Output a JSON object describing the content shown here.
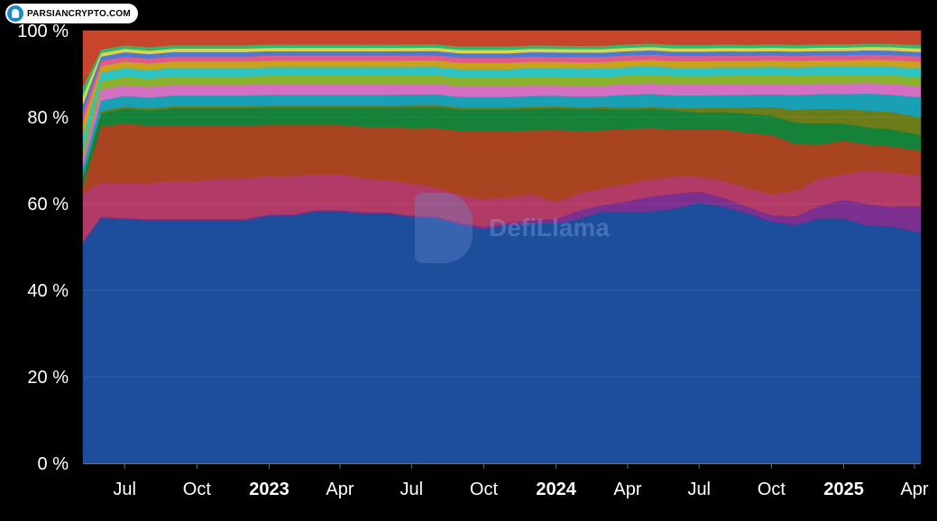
{
  "chart_data": {
    "type": "area",
    "stacked": true,
    "normalized": true,
    "y_tick_labels": [
      "0 %",
      "20 %",
      "40 %",
      "60 %",
      "80 %",
      "100 %"
    ],
    "y_ticks": [
      0,
      20,
      40,
      60,
      80,
      100
    ],
    "ylim": [
      0,
      100
    ],
    "x_tick_labels": [
      "Jul",
      "Oct",
      "2023",
      "Apr",
      "Jul",
      "Oct",
      "2024",
      "Apr",
      "Jul",
      "Oct",
      "2025",
      "Apr"
    ],
    "x_tick_dates": [
      "2022-07",
      "2022-10",
      "2023-01",
      "2023-04",
      "2023-07",
      "2023-10",
      "2024-01",
      "2024-04",
      "2024-07",
      "2024-10",
      "2025-01",
      "2025-04"
    ],
    "year_labels": [
      "2023",
      "2024",
      "2025"
    ],
    "xlim": [
      "2022-05-09",
      "2025-04-09"
    ],
    "x": [
      "2022-05-09",
      "2022-06-01",
      "2022-07-01",
      "2022-08-01",
      "2022-09-01",
      "2022-10-01",
      "2022-11-01",
      "2022-12-01",
      "2023-01-01",
      "2023-02-01",
      "2023-03-01",
      "2023-04-01",
      "2023-05-01",
      "2023-06-01",
      "2023-07-01",
      "2023-08-01",
      "2023-09-01",
      "2023-10-01",
      "2023-11-01",
      "2023-12-01",
      "2024-01-01",
      "2024-02-01",
      "2024-03-01",
      "2024-04-01",
      "2024-05-01",
      "2024-06-01",
      "2024-07-01",
      "2024-08-01",
      "2024-09-01",
      "2024-10-01",
      "2024-11-01",
      "2024-12-01",
      "2025-01-01",
      "2025-02-01",
      "2025-03-01",
      "2025-04-09"
    ],
    "series": [
      {
        "color": "#1d4e9b",
        "values": [
          50,
          57,
          57,
          57,
          57,
          57,
          57,
          57,
          58,
          58,
          59,
          59,
          58.5,
          58.5,
          58,
          58,
          56,
          55,
          56,
          56,
          56.5,
          57,
          59,
          59,
          59,
          59.5,
          61,
          60,
          59,
          57,
          56,
          58,
          58,
          56,
          55,
          52
        ]
      },
      {
        "color": "#7b2f8e",
        "values": [
          0.3,
          0.3,
          0.3,
          0.3,
          0.3,
          0.3,
          0.3,
          0.3,
          0.3,
          0.3,
          0.3,
          0.3,
          0.3,
          0.3,
          0.3,
          0.3,
          0.5,
          0.5,
          0.5,
          0.8,
          1.0,
          2.0,
          1.5,
          2.5,
          3.5,
          3.5,
          2.5,
          2.0,
          1.5,
          1.5,
          2.0,
          3.0,
          4.5,
          5.0,
          4.5,
          6.0
        ]
      },
      {
        "color": "#b23a67",
        "values": [
          11,
          8,
          8,
          8.5,
          9,
          9,
          9.5,
          9.5,
          9,
          9,
          8.5,
          8.5,
          8,
          7.5,
          7.5,
          7,
          6.5,
          6.5,
          6,
          6,
          4,
          4,
          4,
          4,
          4,
          4,
          3.5,
          4,
          4.5,
          5,
          6,
          6.5,
          6,
          8,
          8,
          7
        ]
      },
      {
        "color": "#a8441f",
        "values": [
          1.5,
          13,
          14,
          13.5,
          13,
          13,
          12.5,
          12.5,
          12,
          12,
          11.5,
          11.5,
          12,
          12.5,
          13,
          14,
          15,
          16,
          15.5,
          15,
          17,
          14.5,
          13.5,
          13,
          12,
          11,
          11,
          12,
          13,
          14,
          11,
          8,
          8,
          6,
          6,
          5.5
        ]
      },
      {
        "color": "#15823a",
        "values": [
          2,
          3,
          3.5,
          3.5,
          4,
          4,
          4,
          4,
          4,
          4,
          4,
          4,
          4.5,
          4.5,
          5,
          5,
          5,
          5,
          5,
          5,
          5,
          5,
          5,
          4.5,
          4.5,
          4.5,
          4,
          4,
          4.5,
          4.5,
          5,
          5,
          4,
          4,
          4,
          3.5
        ]
      },
      {
        "color": "#6b7c18",
        "values": [
          0.5,
          0.5,
          0.5,
          0.5,
          0.5,
          0.5,
          0.5,
          0.5,
          0.5,
          0.5,
          0.5,
          0.5,
          0.5,
          0.5,
          0.5,
          0.5,
          0.5,
          0.5,
          0.5,
          0.5,
          0.5,
          0.5,
          0.5,
          0.5,
          0.5,
          0.5,
          1,
          1,
          1.5,
          2,
          3,
          3.5,
          3.5,
          4,
          4,
          4
        ]
      },
      {
        "color": "#1aa0b5",
        "values": [
          2,
          2.5,
          2.5,
          2.5,
          2.5,
          2.5,
          2.5,
          2.5,
          2.5,
          2.5,
          2.5,
          2.5,
          2.5,
          2.5,
          2.5,
          2.5,
          2.5,
          2.5,
          2.5,
          2.5,
          2.5,
          2.5,
          2.5,
          3,
          3,
          3,
          3,
          3,
          3,
          3,
          3.5,
          3.5,
          3.5,
          4,
          4,
          4.5
        ]
      },
      {
        "color": "#d46fc4",
        "values": [
          2,
          2.5,
          2.5,
          2.5,
          2.5,
          2.5,
          2.5,
          2.5,
          2.5,
          2.5,
          2.5,
          2.5,
          2.5,
          2.5,
          2.5,
          2.5,
          2.5,
          2.5,
          2.5,
          2.5,
          2.5,
          2.5,
          2.5,
          2.5,
          2.5,
          2.5,
          2.5,
          2.5,
          2.5,
          2.5,
          2.5,
          2.5,
          2.5,
          2.5,
          2.5,
          2.5
        ]
      },
      {
        "color": "#8bb22c",
        "values": [
          2,
          2,
          2,
          2,
          2,
          2,
          2,
          2,
          2,
          2,
          2,
          2,
          2,
          2,
          2,
          2,
          2,
          2,
          2,
          2,
          2,
          2,
          2,
          2,
          2,
          2,
          2,
          2,
          2,
          2,
          2,
          2,
          2,
          2,
          2,
          2
        ]
      },
      {
        "color": "#2ec4c4",
        "values": [
          3,
          2,
          2,
          2,
          2,
          2,
          2,
          2,
          2,
          2,
          2,
          2,
          2,
          2,
          2,
          2,
          2,
          2,
          2,
          2,
          2,
          2,
          2,
          2,
          2,
          2,
          2,
          2,
          2,
          2,
          2,
          2,
          2,
          2,
          2,
          2
        ]
      },
      {
        "color": "#c9a21c",
        "values": [
          3,
          1.5,
          1.5,
          1.5,
          1.5,
          1.5,
          1.5,
          1.5,
          1.5,
          1.5,
          1.5,
          1.5,
          1.5,
          1.5,
          1.5,
          1.5,
          1.5,
          1.5,
          1.5,
          1.5,
          1.5,
          1.5,
          1.5,
          1.5,
          1.5,
          1.5,
          1.5,
          1.5,
          1.5,
          1.5,
          1.5,
          1.5,
          1.5,
          1.5,
          1.5,
          1.5
        ]
      },
      {
        "color": "#e25a8a",
        "values": [
          2,
          1.2,
          1.2,
          1.2,
          1.2,
          1.2,
          1.2,
          1.2,
          1.2,
          1.2,
          1.2,
          1.2,
          1.2,
          1.2,
          1.2,
          1.2,
          1.2,
          1.2,
          1.2,
          1.2,
          1.2,
          1.2,
          1.2,
          1.2,
          1.2,
          1.2,
          1.2,
          1.2,
          1.2,
          1.2,
          1.2,
          1.2,
          1.2,
          1.2,
          1.2,
          1.2
        ]
      },
      {
        "color": "#4a7ad6",
        "values": [
          2,
          1,
          1,
          1,
          1,
          1,
          1,
          1,
          1,
          1,
          1,
          1,
          1,
          1,
          1,
          1,
          1,
          1,
          1,
          1,
          1,
          1,
          1,
          1,
          1,
          1,
          1,
          1,
          1,
          1,
          1,
          1,
          1,
          1,
          1,
          1
        ]
      },
      {
        "color": "#e0d24a",
        "values": [
          2,
          0.8,
          0.8,
          0.8,
          0.8,
          0.8,
          0.8,
          0.8,
          0.8,
          0.8,
          0.8,
          0.8,
          0.8,
          0.8,
          0.8,
          0.8,
          0.8,
          0.8,
          0.8,
          0.8,
          0.8,
          0.8,
          0.8,
          0.8,
          0.8,
          0.8,
          0.8,
          0.8,
          0.8,
          0.8,
          0.8,
          0.8,
          0.8,
          0.8,
          0.8,
          0.8
        ]
      },
      {
        "color": "#33b86b",
        "values": [
          2,
          0.8,
          0.8,
          0.8,
          0.8,
          0.8,
          0.8,
          0.8,
          0.8,
          0.8,
          0.8,
          0.8,
          0.8,
          0.8,
          0.8,
          0.8,
          0.8,
          0.8,
          0.8,
          0.8,
          0.8,
          0.8,
          0.8,
          0.8,
          0.8,
          0.8,
          0.8,
          0.8,
          0.8,
          0.8,
          0.8,
          0.8,
          0.8,
          0.8,
          0.8,
          0.8
        ]
      },
      {
        "color": "#c8452c",
        "values": [
          12.7,
          4.4,
          3.4,
          3.9,
          3.4,
          3.4,
          3.4,
          3.4,
          3.2,
          3.2,
          3.2,
          3.2,
          3.2,
          3.2,
          3.2,
          3.2,
          3.7,
          3.7,
          3.7,
          3.4,
          3.5,
          3.5,
          3.5,
          3.2,
          3.0,
          3.3,
          3.3,
          3.2,
          3.3,
          3.2,
          3.3,
          3.2,
          3.2,
          3.0,
          3.0,
          3.2
        ]
      }
    ],
    "title": "",
    "xlabel": "",
    "ylabel": "",
    "legend": "none",
    "grid": false
  },
  "branding": {
    "watermark_site": "PARSIANCRYPTO.COM",
    "watermark_brand": "DefiLlama"
  }
}
